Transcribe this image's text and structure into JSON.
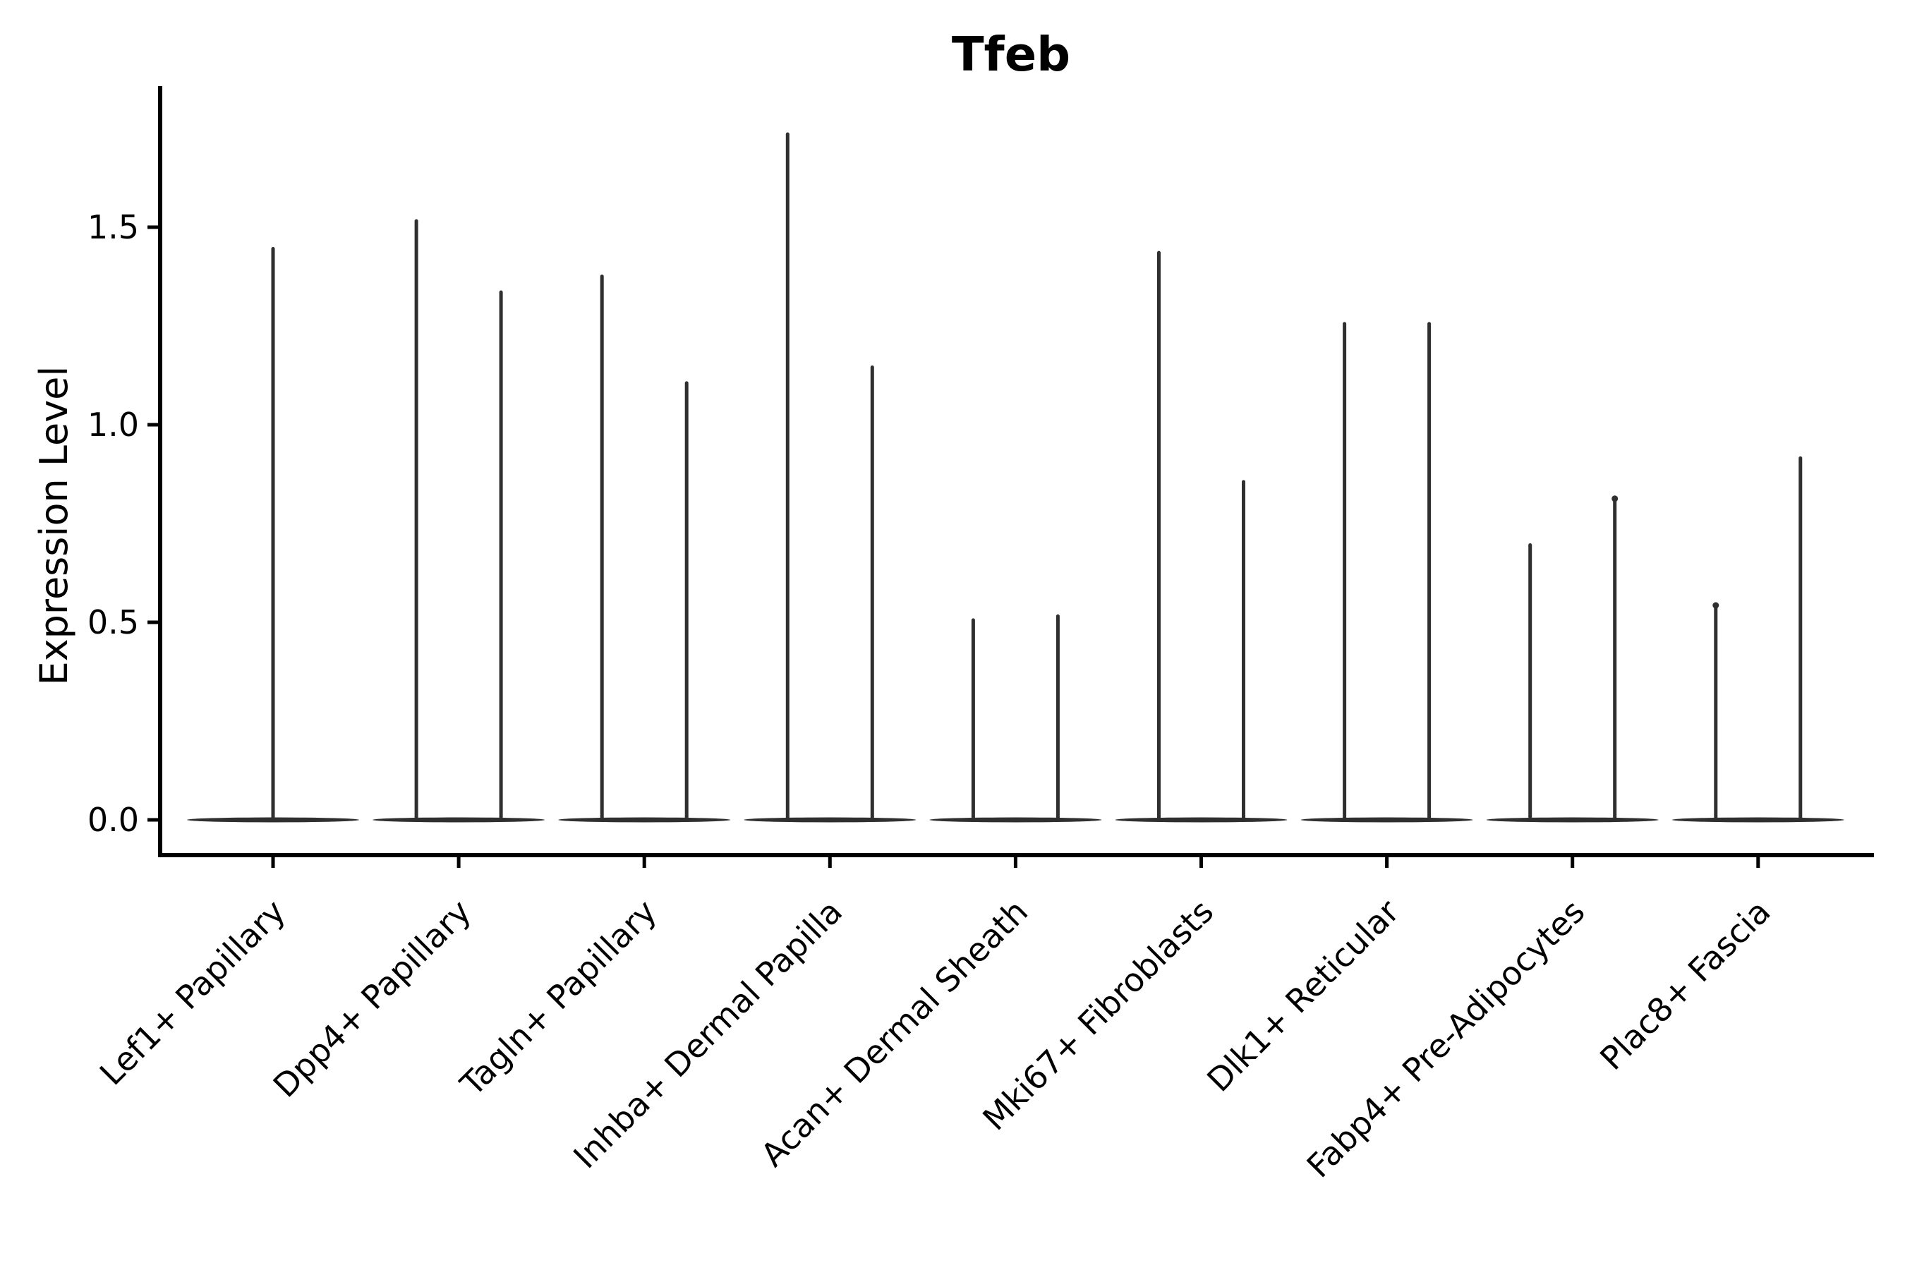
{
  "figure": {
    "background": "#ffffff"
  },
  "colors": {
    "violin_ink": "#2f2f2f",
    "axis_ink": "#000000",
    "text_ink": "#000000"
  },
  "chart_data": {
    "type": "violin",
    "title": "Tfeb",
    "xlabel": "",
    "ylabel": "Expression Level",
    "ylim": [
      -0.09,
      1.86
    ],
    "yticks": [
      0.0,
      0.5,
      1.0,
      1.5
    ],
    "ytick_labels": [
      "0.0",
      "0.5",
      "1.0",
      "1.5"
    ],
    "grid": false,
    "legend": null,
    "x_tick_label_rotation_deg": 45,
    "shape_note": "Each violin collapses to a wide flat body at expression 0 with a thin spike rising to its maximum value; most categories contain two side-by-side violins.",
    "categories": [
      "Lef1+ Papillary",
      "Dpp4+ Papillary",
      "Tagln+ Papillary",
      "Inhba+ Dermal Papilla",
      "Acan+ Dermal Sheath",
      "Mki67+ Fibroblasts",
      "Dlk1+ Reticular",
      "Fabp4+ Pre-Adipocytes",
      "Plac8+ Fascia"
    ],
    "series": [
      {
        "category": "Lef1+ Papillary",
        "violins": [
          {
            "side": "center",
            "min": 0,
            "max": 1.45
          }
        ]
      },
      {
        "category": "Dpp4+ Papillary",
        "violins": [
          {
            "side": "left",
            "min": 0,
            "max": 1.52
          },
          {
            "side": "right",
            "min": 0,
            "max": 1.34
          }
        ]
      },
      {
        "category": "Tagln+ Papillary",
        "violins": [
          {
            "side": "left",
            "min": 0,
            "max": 1.38
          },
          {
            "side": "right",
            "min": 0,
            "max": 1.11
          }
        ]
      },
      {
        "category": "Inhba+ Dermal Papilla",
        "violins": [
          {
            "side": "left",
            "min": 0,
            "max": 1.74
          },
          {
            "side": "right",
            "min": 0,
            "max": 1.15
          }
        ]
      },
      {
        "category": "Acan+ Dermal Sheath",
        "violins": [
          {
            "side": "left",
            "min": 0,
            "max": 0.51
          },
          {
            "side": "right",
            "min": 0,
            "max": 0.52
          }
        ]
      },
      {
        "category": "Mki67+ Fibroblasts",
        "violins": [
          {
            "side": "left",
            "min": 0,
            "max": 1.44
          },
          {
            "side": "right",
            "min": 0,
            "max": 0.86
          }
        ]
      },
      {
        "category": "Dlk1+ Reticular",
        "violins": [
          {
            "side": "left",
            "min": 0,
            "max": 1.26
          },
          {
            "side": "right",
            "min": 0,
            "max": 1.26
          }
        ]
      },
      {
        "category": "Fabp4+ Pre-Adipocytes",
        "violins": [
          {
            "side": "left",
            "min": 0,
            "max": 0.7
          },
          {
            "side": "right",
            "min": 0,
            "max": 0.82,
            "tip_knob": true
          }
        ]
      },
      {
        "category": "Plac8+ Fascia",
        "violins": [
          {
            "side": "left",
            "min": 0,
            "max": 0.55,
            "tip_knob": true
          },
          {
            "side": "right",
            "min": 0,
            "max": 0.92
          }
        ]
      }
    ]
  }
}
